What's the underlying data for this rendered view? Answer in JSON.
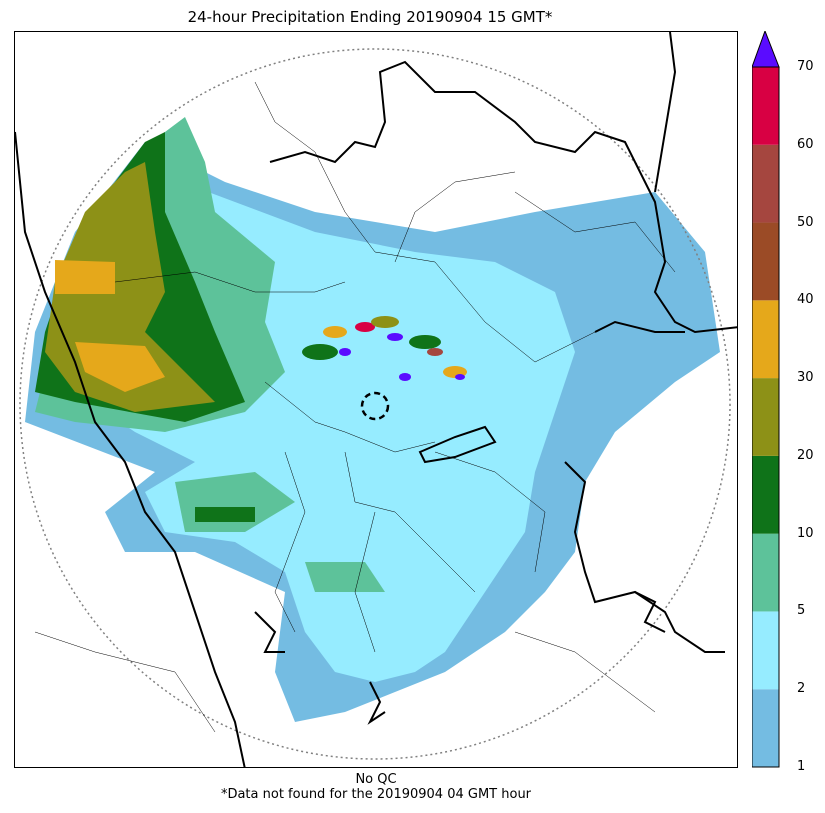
{
  "title": "24-hour Precipitation Ending 20190904 15 GMT*",
  "footer": {
    "qc": "No QC",
    "note": "*Data not found for the 20190904 04 GMT hour"
  },
  "colorbar": {
    "levels": [
      1,
      2,
      5,
      10,
      20,
      30,
      40,
      50,
      60,
      70
    ],
    "labels": [
      "1",
      "2",
      "5",
      "10",
      "20",
      "30",
      "40",
      "50",
      "60",
      "70"
    ],
    "colors": [
      "#74bce2",
      "#96ecff",
      "#5dc29a",
      "#0f7319",
      "#8d9117",
      "#e5a81b",
      "#9b4b26",
      "#a5463f",
      "#d80043"
    ],
    "overflow_color": "#5a0cff"
  },
  "legend_colors": {
    "radar_range_ring": "#808080",
    "borders": "#000000"
  }
}
